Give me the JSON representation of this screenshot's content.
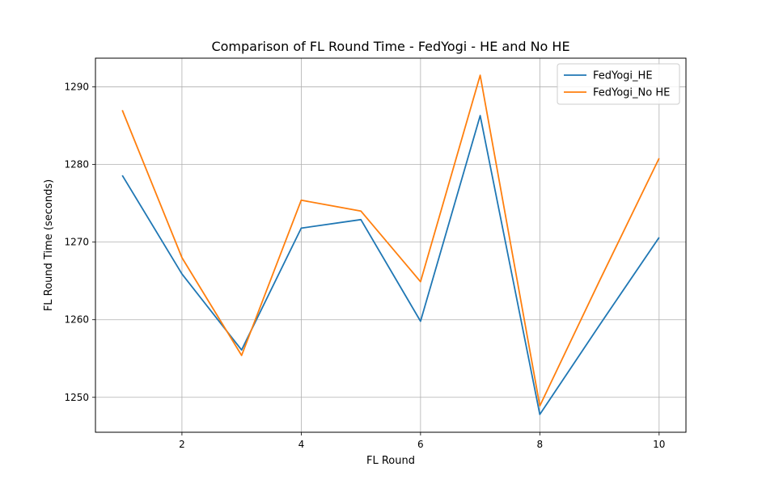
{
  "chart_data": {
    "type": "line",
    "title": "Comparison of FL Round Time - FedYogi - HE and No HE",
    "xlabel": "FL Round",
    "ylabel": "FL Round Time (seconds)",
    "x": [
      1,
      2,
      3,
      4,
      5,
      6,
      7,
      8,
      9,
      10
    ],
    "xlim": [
      0.55,
      10.45
    ],
    "ylim": [
      1245.5,
      1293.7
    ],
    "xticks": [
      2,
      4,
      6,
      8,
      10
    ],
    "yticks": [
      1250,
      1260,
      1270,
      1280,
      1290
    ],
    "grid": true,
    "legend_position": "upper right",
    "series": [
      {
        "name": "FedYogi_HE",
        "color": "#1f77b4",
        "values": [
          1278.6,
          1265.9,
          1256.1,
          1271.8,
          1272.9,
          1259.8,
          1286.3,
          1247.8,
          1259.3,
          1270.6
        ]
      },
      {
        "name": "FedYogi_No HE",
        "color": "#ff7f0e",
        "values": [
          1287.0,
          1268.0,
          1255.4,
          1275.4,
          1274.0,
          1264.9,
          1291.5,
          1248.9,
          1265.0,
          1280.8
        ]
      }
    ]
  }
}
